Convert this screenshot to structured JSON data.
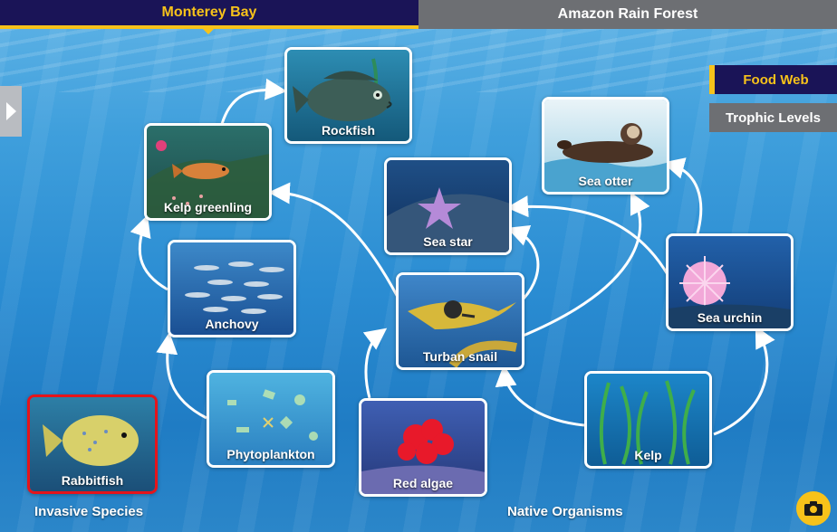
{
  "tabs": {
    "active": "Monterey Bay",
    "inactive": "Amazon Rain Forest"
  },
  "views": {
    "food_web": "Food Web",
    "trophic_levels": "Trophic Levels"
  },
  "sections": {
    "invasive": "Invasive Species",
    "native": "Native Organisms"
  },
  "organisms": {
    "rockfish": "Rockfish",
    "kelp_greenling": "Kelp greenling",
    "anchovy": "Anchovy",
    "phytoplankton": "Phytoplankton",
    "rabbitfish": "Rabbitfish",
    "sea_otter": "Sea otter",
    "sea_star": "Sea star",
    "turban_snail": "Turban snail",
    "sea_urchin": "Sea urchin",
    "red_algae": "Red algae",
    "kelp": "Kelp"
  },
  "icons": {
    "side_toggle": "chevron-right-icon",
    "camera": "camera-icon"
  },
  "colors": {
    "tab_active_bg": "#1a1457",
    "accent": "#f7c21a",
    "inactive_gray": "#6d6f73",
    "invasive_border": "#e5141b"
  }
}
